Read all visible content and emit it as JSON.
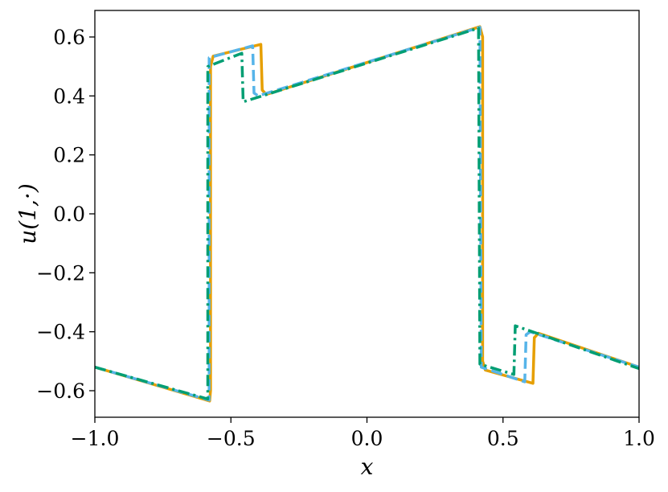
{
  "chart_data": {
    "type": "line",
    "title": "",
    "xlabel": "x",
    "ylabel": "u(1,·)",
    "xlim": [
      -1.0,
      1.0
    ],
    "ylim": [
      -0.69,
      0.69
    ],
    "x_ticks": [
      -1.0,
      -0.5,
      0.0,
      0.5,
      1.0
    ],
    "x_tick_labels": [
      "−1.0",
      "−0.5",
      "0.0",
      "0.5",
      "1.0"
    ],
    "y_ticks": [
      -0.6,
      -0.4,
      -0.2,
      0.0,
      0.2,
      0.4,
      0.6
    ],
    "y_tick_labels": [
      "−0.6",
      "−0.4",
      "−0.2",
      "0.0",
      "0.2",
      "0.4",
      "0.6"
    ],
    "grid": false,
    "legend": "none",
    "series": [
      {
        "color": "#E69F00",
        "style": "solid",
        "points": [
          [
            -1.0,
            -0.52
          ],
          [
            -0.578,
            -0.635
          ],
          [
            -0.575,
            -0.6
          ],
          [
            -0.575,
            0.5
          ],
          [
            -0.565,
            0.535
          ],
          [
            -0.39,
            0.575
          ],
          [
            -0.385,
            0.42
          ],
          [
            -0.37,
            0.405
          ],
          [
            0.415,
            0.635
          ],
          [
            0.425,
            0.6
          ],
          [
            0.425,
            -0.5
          ],
          [
            0.435,
            -0.53
          ],
          [
            0.61,
            -0.575
          ],
          [
            0.615,
            -0.42
          ],
          [
            0.63,
            -0.405
          ],
          [
            1.0,
            -0.52
          ]
        ]
      },
      {
        "color": "#56B4E9",
        "style": "dashed",
        "points": [
          [
            -1.0,
            -0.52
          ],
          [
            -0.58,
            -0.632
          ],
          [
            -0.58,
            0.53
          ],
          [
            -0.42,
            0.57
          ],
          [
            -0.415,
            0.41
          ],
          [
            -0.4,
            0.4
          ],
          [
            0.415,
            0.633
          ],
          [
            0.42,
            -0.52
          ],
          [
            0.58,
            -0.57
          ],
          [
            0.585,
            -0.41
          ],
          [
            0.6,
            -0.4
          ],
          [
            1.0,
            -0.52
          ]
        ]
      },
      {
        "color": "#009E73",
        "style": "dashdot",
        "points": [
          [
            -1.0,
            -0.52
          ],
          [
            -0.585,
            -0.628
          ],
          [
            -0.585,
            0.5
          ],
          [
            -0.46,
            0.545
          ],
          [
            -0.455,
            0.38
          ],
          [
            0.41,
            0.63
          ],
          [
            0.415,
            -0.51
          ],
          [
            0.54,
            -0.545
          ],
          [
            0.545,
            -0.38
          ],
          [
            1.0,
            -0.525
          ]
        ]
      }
    ]
  }
}
